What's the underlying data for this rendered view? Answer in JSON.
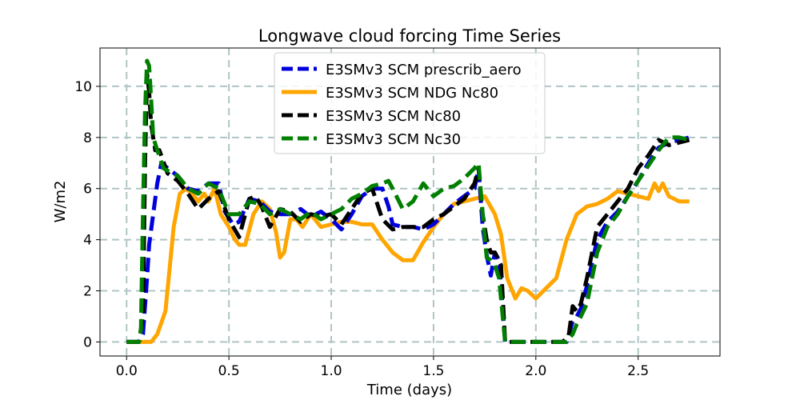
{
  "chart_data": {
    "type": "line",
    "title": "Longwave cloud forcing Time Series",
    "xlabel": "Time (days)",
    "ylabel": "W/m2",
    "xlim": [
      -0.13,
      2.9
    ],
    "ylim": [
      -0.55,
      11.5
    ],
    "xticks": [
      0.0,
      0.5,
      1.0,
      1.5,
      2.0,
      2.5
    ],
    "xtick_labels": [
      "0.0",
      "0.5",
      "1.0",
      "1.5",
      "2.0",
      "2.5"
    ],
    "yticks": [
      0,
      2,
      4,
      6,
      8,
      10
    ],
    "ytick_labels": [
      "0",
      "2",
      "4",
      "6",
      "8",
      "10"
    ],
    "grid": true,
    "legend_position": "top-center",
    "series": [
      {
        "name": "E3SMv3 SCM prescrib_aero",
        "color": "#0000dd",
        "style": "dashed",
        "x": [
          0.0,
          0.06,
          0.08,
          0.1,
          0.11,
          0.13,
          0.15,
          0.17,
          0.2,
          0.25,
          0.3,
          0.35,
          0.4,
          0.45,
          0.48,
          0.52,
          0.55,
          0.6,
          0.65,
          0.7,
          0.75,
          0.8,
          0.85,
          0.9,
          0.95,
          1.0,
          1.05,
          1.1,
          1.15,
          1.2,
          1.25,
          1.28,
          1.3,
          1.35,
          1.4,
          1.45,
          1.5,
          1.55,
          1.6,
          1.65,
          1.7,
          1.72,
          1.74,
          1.76,
          1.78,
          1.8,
          1.82,
          1.85,
          1.9,
          2.0,
          2.1,
          2.15,
          2.18,
          2.2,
          2.22,
          2.25,
          2.3,
          2.35,
          2.4,
          2.45,
          2.5,
          2.55,
          2.6,
          2.65,
          2.7,
          2.75
        ],
        "y": [
          0.0,
          0.0,
          0.3,
          2.5,
          3.8,
          5.0,
          6.2,
          7.0,
          6.8,
          6.5,
          6.0,
          5.9,
          6.2,
          6.2,
          5.1,
          4.6,
          4.7,
          5.6,
          5.5,
          5.1,
          5.0,
          5.0,
          5.2,
          4.9,
          5.1,
          4.8,
          4.4,
          5.0,
          5.7,
          6.0,
          6.0,
          5.3,
          4.6,
          4.5,
          4.5,
          4.4,
          4.6,
          5.0,
          5.4,
          5.7,
          6.0,
          6.8,
          4.5,
          3.4,
          2.6,
          3.5,
          3.2,
          0.0,
          0.0,
          0.0,
          0.0,
          0.0,
          0.8,
          1.0,
          1.3,
          2.2,
          4.0,
          4.7,
          5.1,
          5.7,
          6.3,
          7.0,
          7.6,
          7.8,
          7.9,
          8.0
        ]
      },
      {
        "name": "E3SMv3 SCM NDG Nc80",
        "color": "#ffa500",
        "style": "solid",
        "x": [
          0.0,
          0.08,
          0.12,
          0.15,
          0.19,
          0.23,
          0.26,
          0.29,
          0.32,
          0.35,
          0.38,
          0.4,
          0.43,
          0.46,
          0.5,
          0.53,
          0.55,
          0.58,
          0.62,
          0.66,
          0.7,
          0.73,
          0.75,
          0.77,
          0.8,
          0.83,
          0.86,
          0.9,
          0.95,
          1.0,
          1.05,
          1.1,
          1.15,
          1.2,
          1.25,
          1.3,
          1.35,
          1.4,
          1.45,
          1.5,
          1.55,
          1.6,
          1.65,
          1.7,
          1.75,
          1.8,
          1.83,
          1.86,
          1.9,
          1.93,
          1.96,
          2.0,
          2.05,
          2.1,
          2.15,
          2.2,
          2.25,
          2.3,
          2.35,
          2.4,
          2.45,
          2.5,
          2.55,
          2.58,
          2.6,
          2.62,
          2.65,
          2.7,
          2.75
        ],
        "y": [
          0.0,
          0.0,
          0.0,
          0.3,
          1.2,
          4.5,
          5.8,
          6.0,
          5.8,
          5.5,
          5.8,
          5.5,
          6.0,
          5.0,
          4.5,
          4.0,
          3.8,
          3.8,
          5.0,
          5.5,
          5.2,
          4.3,
          3.3,
          3.5,
          4.8,
          4.8,
          4.5,
          5.0,
          4.5,
          4.6,
          4.7,
          4.7,
          4.6,
          4.6,
          4.0,
          3.5,
          3.2,
          3.2,
          3.9,
          4.5,
          5.0,
          5.4,
          5.5,
          5.6,
          5.7,
          5.0,
          4.2,
          2.5,
          1.7,
          2.1,
          2.0,
          1.7,
          2.1,
          2.5,
          4.0,
          5.0,
          5.3,
          5.4,
          5.6,
          5.9,
          5.8,
          5.7,
          5.6,
          6.2,
          5.9,
          6.2,
          5.7,
          5.5,
          5.5
        ]
      },
      {
        "name": "E3SMv3 SCM Nc80",
        "color": "#000000",
        "style": "dashed",
        "x": [
          0.0,
          0.06,
          0.08,
          0.09,
          0.1,
          0.11,
          0.12,
          0.14,
          0.16,
          0.2,
          0.25,
          0.3,
          0.35,
          0.4,
          0.45,
          0.5,
          0.55,
          0.6,
          0.63,
          0.66,
          0.7,
          0.75,
          0.8,
          0.85,
          0.9,
          0.95,
          1.0,
          1.05,
          1.1,
          1.15,
          1.2,
          1.25,
          1.3,
          1.35,
          1.4,
          1.45,
          1.5,
          1.55,
          1.6,
          1.65,
          1.7,
          1.72,
          1.74,
          1.76,
          1.78,
          1.8,
          1.83,
          1.85,
          1.9,
          2.0,
          2.1,
          2.13,
          2.16,
          2.18,
          2.2,
          2.22,
          2.25,
          2.3,
          2.35,
          2.4,
          2.45,
          2.5,
          2.55,
          2.6,
          2.65,
          2.7,
          2.75
        ],
        "y": [
          0.0,
          0.0,
          1.0,
          7.0,
          10.5,
          9.8,
          8.5,
          7.5,
          7.5,
          6.6,
          6.3,
          5.8,
          5.2,
          5.6,
          5.9,
          4.8,
          4.1,
          5.6,
          5.7,
          5.3,
          4.5,
          5.2,
          5.1,
          4.7,
          5.0,
          4.9,
          5.0,
          4.6,
          5.2,
          5.8,
          6.0,
          4.8,
          4.4,
          4.5,
          4.5,
          4.5,
          4.8,
          5.0,
          5.3,
          5.6,
          6.2,
          6.8,
          5.0,
          4.0,
          3.5,
          3.5,
          3.0,
          0.0,
          0.0,
          0.0,
          0.0,
          0.0,
          0.2,
          1.4,
          1.2,
          1.5,
          2.5,
          4.5,
          5.0,
          5.5,
          6.0,
          6.8,
          7.3,
          7.9,
          7.7,
          7.8,
          7.9
        ]
      },
      {
        "name": "E3SMv3 SCM Nc30",
        "color": "#007f00",
        "style": "dashed",
        "x": [
          0.0,
          0.06,
          0.07,
          0.08,
          0.09,
          0.1,
          0.11,
          0.12,
          0.13,
          0.15,
          0.18,
          0.2,
          0.25,
          0.3,
          0.35,
          0.4,
          0.45,
          0.5,
          0.55,
          0.6,
          0.65,
          0.7,
          0.75,
          0.8,
          0.85,
          0.9,
          0.95,
          1.0,
          1.05,
          1.1,
          1.15,
          1.2,
          1.25,
          1.28,
          1.3,
          1.35,
          1.4,
          1.45,
          1.5,
          1.55,
          1.6,
          1.65,
          1.7,
          1.72,
          1.74,
          1.76,
          1.78,
          1.8,
          1.82,
          1.85,
          1.9,
          2.0,
          2.1,
          2.15,
          2.18,
          2.2,
          2.22,
          2.25,
          2.3,
          2.35,
          2.4,
          2.45,
          2.5,
          2.55,
          2.6,
          2.65,
          2.7,
          2.75
        ],
        "y": [
          0.0,
          0.0,
          0.5,
          5.0,
          9.0,
          11.0,
          10.8,
          9.5,
          8.0,
          7.5,
          6.8,
          6.7,
          6.5,
          6.0,
          5.8,
          6.2,
          6.0,
          5.0,
          5.0,
          5.5,
          5.4,
          5.0,
          5.2,
          5.0,
          4.8,
          5.1,
          4.8,
          5.0,
          5.2,
          5.6,
          5.8,
          6.1,
          6.2,
          6.3,
          6.0,
          5.2,
          5.5,
          6.2,
          5.7,
          6.0,
          6.1,
          6.4,
          6.8,
          7.0,
          5.0,
          3.3,
          3.2,
          3.0,
          2.5,
          0.0,
          0.0,
          0.0,
          0.0,
          0.0,
          0.3,
          0.7,
          1.0,
          1.5,
          3.5,
          4.5,
          5.0,
          5.7,
          6.3,
          6.9,
          7.5,
          8.0,
          8.0,
          7.9
        ]
      }
    ]
  }
}
